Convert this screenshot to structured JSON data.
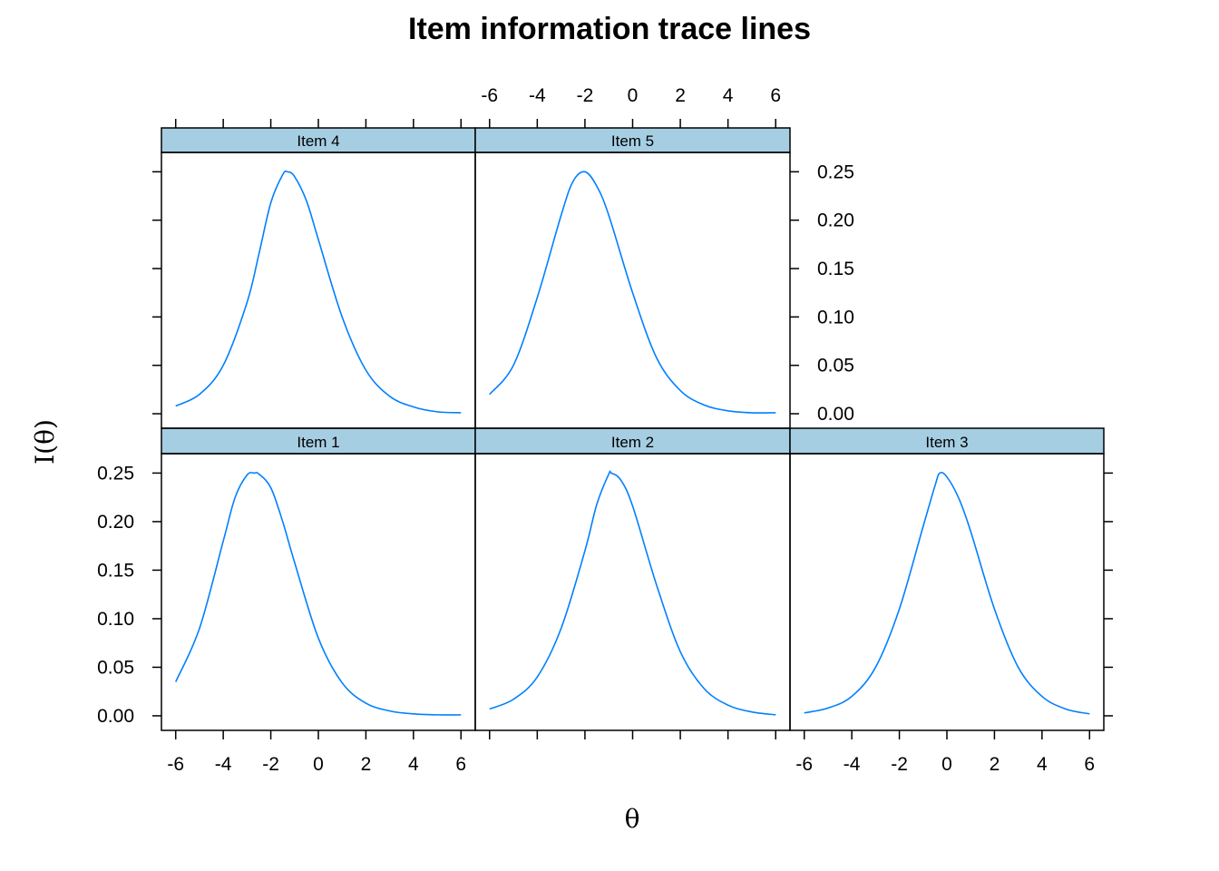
{
  "chart_data": {
    "type": "line",
    "title": "Item information trace lines",
    "xlabel": "θ",
    "ylabel": "I(θ)",
    "xlim": [
      -6.6,
      6.6
    ],
    "ylim": [
      -0.015,
      0.27
    ],
    "x_ticks": [
      "-6",
      "-4",
      "-2",
      "0",
      "2",
      "4",
      "6"
    ],
    "y_ticks": [
      "0.00",
      "0.05",
      "0.10",
      "0.15",
      "0.20",
      "0.25"
    ],
    "line_color": "#0080ff",
    "strip_color": "#a6cee3",
    "panels": [
      {
        "name": "Item 1",
        "x": [
          -6,
          -5,
          -4,
          -3.5,
          -3,
          -2.7,
          -2.5,
          -2,
          -1.5,
          -1,
          0,
          1,
          2,
          3,
          4,
          5,
          6
        ],
        "y": [
          0.035,
          0.09,
          0.18,
          0.225,
          0.248,
          0.25,
          0.249,
          0.235,
          0.2,
          0.158,
          0.08,
          0.034,
          0.013,
          0.005,
          0.002,
          0.001,
          0.001
        ]
      },
      {
        "name": "Item 2",
        "x": [
          -6,
          -5,
          -4,
          -3,
          -2,
          -1.5,
          -1,
          -0.9,
          -0.5,
          0,
          1,
          2,
          3,
          4,
          5,
          6
        ],
        "y": [
          0.007,
          0.017,
          0.04,
          0.09,
          0.17,
          0.218,
          0.249,
          0.25,
          0.243,
          0.216,
          0.135,
          0.066,
          0.028,
          0.011,
          0.004,
          0.001
        ]
      },
      {
        "name": "Item 3",
        "x": [
          -6,
          -5,
          -4,
          -3,
          -2,
          -1,
          -0.5,
          -0.3,
          0,
          0.5,
          1,
          2,
          3,
          4,
          5,
          6
        ],
        "y": [
          0.003,
          0.008,
          0.02,
          0.05,
          0.11,
          0.195,
          0.237,
          0.25,
          0.246,
          0.224,
          0.19,
          0.11,
          0.05,
          0.02,
          0.007,
          0.002
        ]
      },
      {
        "name": "Item 4",
        "x": [
          -6,
          -5,
          -4,
          -3,
          -2.5,
          -2,
          -1.5,
          -1.3,
          -1,
          -0.5,
          0,
          1,
          2,
          3,
          4,
          5,
          6
        ],
        "y": [
          0.008,
          0.02,
          0.05,
          0.115,
          0.165,
          0.218,
          0.247,
          0.25,
          0.245,
          0.22,
          0.18,
          0.1,
          0.045,
          0.018,
          0.007,
          0.002,
          0.001
        ]
      },
      {
        "name": "Item 5",
        "x": [
          -6,
          -5,
          -4,
          -3,
          -2.5,
          -2,
          -1.5,
          -1,
          0,
          1,
          2,
          3,
          4,
          5,
          6
        ],
        "y": [
          0.02,
          0.05,
          0.12,
          0.205,
          0.24,
          0.25,
          0.235,
          0.205,
          0.125,
          0.058,
          0.024,
          0.009,
          0.003,
          0.001,
          0.001
        ]
      }
    ]
  }
}
